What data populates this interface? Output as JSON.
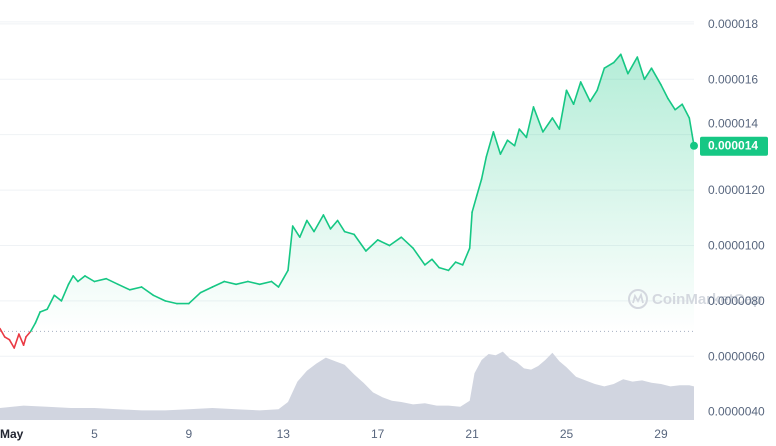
{
  "watermark": "CoinMarketCap",
  "chart_data": {
    "type": "line",
    "title": "",
    "xlabel": "",
    "ylabel": "",
    "x_ticks": [
      "May",
      "5",
      "9",
      "13",
      "17",
      "21",
      "25",
      "29"
    ],
    "x_tick_days": [
      1,
      5,
      9,
      13,
      17,
      21,
      25,
      29
    ],
    "y_ticks": [
      "0.0000040",
      "0.0000060",
      "0.0000080",
      "0.0000100",
      "0.0000120",
      "0.000014",
      "0.000016",
      "0.000018"
    ],
    "y_tick_values": [
      4e-06,
      6e-06,
      8e-06,
      1e-05,
      1.2e-05,
      1.4e-05,
      1.6e-05,
      1.8e-05
    ],
    "ylim": [
      3.7e-06,
      1.85e-05
    ],
    "xlim": [
      1,
      30.4
    ],
    "reference_line": {
      "value": 6.9e-06,
      "style": "dotted"
    },
    "current_price_label": "0.000014",
    "current_price": 1.36e-05,
    "colors": {
      "up": "#16c784",
      "down": "#ea3943",
      "volume": "#d1d5e0",
      "badge": "#16c784",
      "grid": "#eff2f5"
    },
    "series": [
      {
        "role": "price",
        "x": [
          1.0,
          1.2,
          1.4,
          1.6,
          1.8,
          2.0,
          2.1,
          2.3,
          2.5,
          2.7,
          3.0,
          3.3,
          3.6,
          3.9,
          4.1,
          4.3,
          4.6,
          5.0,
          5.5,
          6.0,
          6.5,
          7.0,
          7.5,
          8.0,
          8.5,
          9.0,
          9.5,
          10.0,
          10.5,
          11.0,
          11.5,
          12.0,
          12.5,
          12.8,
          13.0,
          13.2,
          13.4,
          13.7,
          14.0,
          14.3,
          14.7,
          15.0,
          15.3,
          15.6,
          16.0,
          16.5,
          17.0,
          17.5,
          18.0,
          18.5,
          19.0,
          19.3,
          19.6,
          20.0,
          20.3,
          20.6,
          20.9,
          21.0,
          21.2,
          21.4,
          21.6,
          21.9,
          22.2,
          22.5,
          22.8,
          23.0,
          23.3,
          23.6,
          24.0,
          24.4,
          24.7,
          25.0,
          25.3,
          25.6,
          26.0,
          26.3,
          26.6,
          27.0,
          27.3,
          27.6,
          28.0,
          28.3,
          28.6,
          29.0,
          29.3,
          29.6,
          29.9,
          30.2,
          30.4
        ],
        "y": [
          7e-06,
          6.7e-06,
          6.6e-06,
          6.3e-06,
          6.8e-06,
          6.4e-06,
          6.7e-06,
          6.9e-06,
          7.2e-06,
          7.6e-06,
          7.7e-06,
          8.2e-06,
          8e-06,
          8.6e-06,
          8.9e-06,
          8.7e-06,
          8.9e-06,
          8.7e-06,
          8.8e-06,
          8.6e-06,
          8.4e-06,
          8.5e-06,
          8.2e-06,
          8e-06,
          7.9e-06,
          7.9e-06,
          8.3e-06,
          8.5e-06,
          8.7e-06,
          8.6e-06,
          8.7e-06,
          8.6e-06,
          8.7e-06,
          8.5e-06,
          8.8e-06,
          9.1e-06,
          1.07e-05,
          1.03e-05,
          1.09e-05,
          1.05e-05,
          1.11e-05,
          1.06e-05,
          1.09e-05,
          1.05e-05,
          1.04e-05,
          9.8e-06,
          1.02e-05,
          1e-05,
          1.03e-05,
          9.9e-06,
          9.3e-06,
          9.5e-06,
          9.2e-06,
          9.1e-06,
          9.4e-06,
          9.3e-06,
          9.9e-06,
          1.12e-05,
          1.18e-05,
          1.24e-05,
          1.32e-05,
          1.41e-05,
          1.33e-05,
          1.38e-05,
          1.36e-05,
          1.42e-05,
          1.39e-05,
          1.5e-05,
          1.41e-05,
          1.46e-05,
          1.42e-05,
          1.56e-05,
          1.51e-05,
          1.59e-05,
          1.52e-05,
          1.56e-05,
          1.64e-05,
          1.66e-05,
          1.69e-05,
          1.62e-05,
          1.68e-05,
          1.6e-05,
          1.64e-05,
          1.58e-05,
          1.53e-05,
          1.49e-05,
          1.51e-05,
          1.46e-05,
          1.36e-05
        ]
      },
      {
        "role": "volume",
        "x": [
          1.0,
          2.0,
          3.0,
          4.0,
          5.0,
          6.0,
          7.0,
          8.0,
          9.0,
          10.0,
          11.0,
          12.0,
          12.8,
          13.2,
          13.6,
          14.0,
          14.4,
          14.8,
          15.2,
          15.6,
          16.0,
          16.4,
          16.8,
          17.2,
          17.6,
          18.0,
          18.5,
          19.0,
          19.5,
          20.0,
          20.5,
          20.9,
          21.1,
          21.4,
          21.7,
          22.0,
          22.3,
          22.6,
          22.9,
          23.2,
          23.5,
          23.8,
          24.1,
          24.4,
          24.7,
          25.0,
          25.4,
          25.8,
          26.2,
          26.6,
          27.0,
          27.4,
          27.8,
          28.2,
          28.6,
          29.0,
          29.4,
          29.8,
          30.2,
          30.4
        ],
        "y": [
          1.0,
          1.2,
          1.1,
          1.0,
          1.0,
          0.9,
          0.8,
          0.8,
          0.9,
          1.0,
          0.9,
          0.8,
          0.9,
          1.5,
          3.2,
          4.1,
          4.7,
          5.2,
          4.9,
          4.6,
          3.8,
          3.1,
          2.3,
          1.9,
          1.6,
          1.5,
          1.3,
          1.4,
          1.2,
          1.2,
          1.1,
          1.6,
          3.9,
          5.0,
          5.5,
          5.4,
          5.7,
          5.1,
          4.8,
          4.3,
          4.2,
          4.5,
          5.0,
          5.6,
          4.9,
          4.4,
          3.6,
          3.3,
          3.0,
          2.8,
          3.0,
          3.4,
          3.2,
          3.3,
          3.1,
          3.0,
          2.8,
          2.9,
          2.9,
          2.8
        ]
      }
    ]
  }
}
